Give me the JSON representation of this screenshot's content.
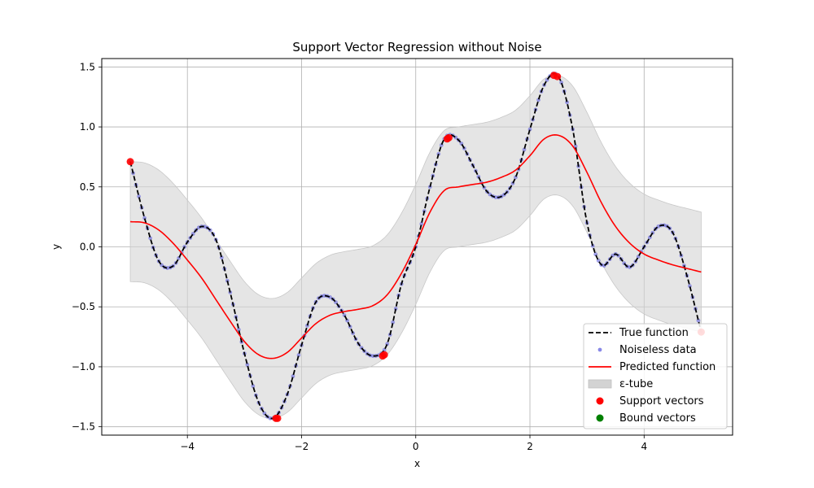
{
  "chart_data": {
    "type": "line",
    "title": "Support Vector Regression without Noise",
    "xlabel": "x",
    "ylabel": "y",
    "xlim": [
      -5.5,
      5.55
    ],
    "ylim": [
      -1.57,
      1.57
    ],
    "xticks": [
      -4,
      -2,
      0,
      2,
      4
    ],
    "yticks": [
      -1.5,
      -1.0,
      -0.5,
      0.0,
      0.5,
      1.0,
      1.5
    ],
    "xtick_labels": [
      "−4",
      "−2",
      "0",
      "2",
      "4"
    ],
    "ytick_labels": [
      "−1.5",
      "−1.0",
      "−0.5",
      "0.0",
      "0.5",
      "1.0",
      "1.5"
    ],
    "grid": true,
    "legend_position": "bottom-right",
    "epsilon": 0.5,
    "series": [
      {
        "name": "True function",
        "style": "dashed",
        "color": "#000000",
        "x": [
          -5,
          -4.75,
          -4.5,
          -4.25,
          -4,
          -3.75,
          -3.5,
          -3.25,
          -3,
          -2.75,
          -2.5,
          -2.25,
          -2,
          -1.75,
          -1.5,
          -1.25,
          -1,
          -0.75,
          -0.5,
          -0.25,
          0,
          0.25,
          0.5,
          0.75,
          1,
          1.25,
          1.5,
          1.75,
          2,
          2.25,
          2.5,
          2.75,
          3,
          3.25,
          3.5,
          3.75,
          4,
          4.25,
          4.5,
          4.75,
          5
        ],
        "y": [
          0.71,
          0.24,
          -0.12,
          -0.16,
          0.04,
          0.17,
          0.06,
          -0.38,
          -0.89,
          -1.3,
          -1.43,
          -1.23,
          -0.82,
          -0.46,
          -0.42,
          -0.57,
          -0.81,
          -0.91,
          -0.81,
          -0.31,
          0.0,
          0.5,
          0.9,
          0.89,
          0.68,
          0.46,
          0.42,
          0.58,
          0.98,
          1.35,
          1.42,
          0.98,
          0.2,
          -0.15,
          -0.06,
          -0.17,
          0.0,
          0.17,
          0.12,
          -0.24,
          -0.71
        ]
      },
      {
        "name": "Noiseless data",
        "style": "markers",
        "color": "#5555dd"
      },
      {
        "name": "Predicted function",
        "style": "solid",
        "color": "#ff0000",
        "x": [
          -5,
          -4.75,
          -4.5,
          -4.25,
          -4,
          -3.75,
          -3.5,
          -3.25,
          -3,
          -2.75,
          -2.5,
          -2.25,
          -2,
          -1.75,
          -1.5,
          -1.25,
          -1,
          -0.75,
          -0.5,
          -0.25,
          0,
          0.25,
          0.5,
          0.75,
          1,
          1.25,
          1.5,
          1.75,
          2,
          2.25,
          2.5,
          2.75,
          3,
          3.25,
          3.5,
          3.75,
          4,
          4.25,
          4.5,
          4.75,
          5
        ],
        "y": [
          0.21,
          0.2,
          0.14,
          0.03,
          -0.11,
          -0.26,
          -0.44,
          -0.62,
          -0.79,
          -0.9,
          -0.93,
          -0.88,
          -0.76,
          -0.64,
          -0.57,
          -0.54,
          -0.52,
          -0.49,
          -0.4,
          -0.22,
          0.02,
          0.29,
          0.47,
          0.5,
          0.52,
          0.54,
          0.58,
          0.64,
          0.76,
          0.9,
          0.93,
          0.84,
          0.62,
          0.37,
          0.17,
          0.03,
          -0.06,
          -0.11,
          -0.15,
          -0.18,
          -0.21
        ]
      },
      {
        "name": "ε-tube",
        "style": "band",
        "color": "#d3d3d3"
      },
      {
        "name": "Support vectors",
        "style": "markers",
        "color": "#ff0000",
        "x": [
          -5,
          -2.45,
          -2.42,
          -0.58,
          -0.55,
          0.55,
          0.58,
          2.42,
          2.48,
          5
        ],
        "y": [
          0.71,
          -1.43,
          -1.43,
          -0.91,
          -0.9,
          0.9,
          0.91,
          1.43,
          1.42,
          -0.71
        ]
      },
      {
        "name": "Bound vectors",
        "style": "markers",
        "color": "#008000",
        "x": [],
        "y": []
      }
    ]
  }
}
